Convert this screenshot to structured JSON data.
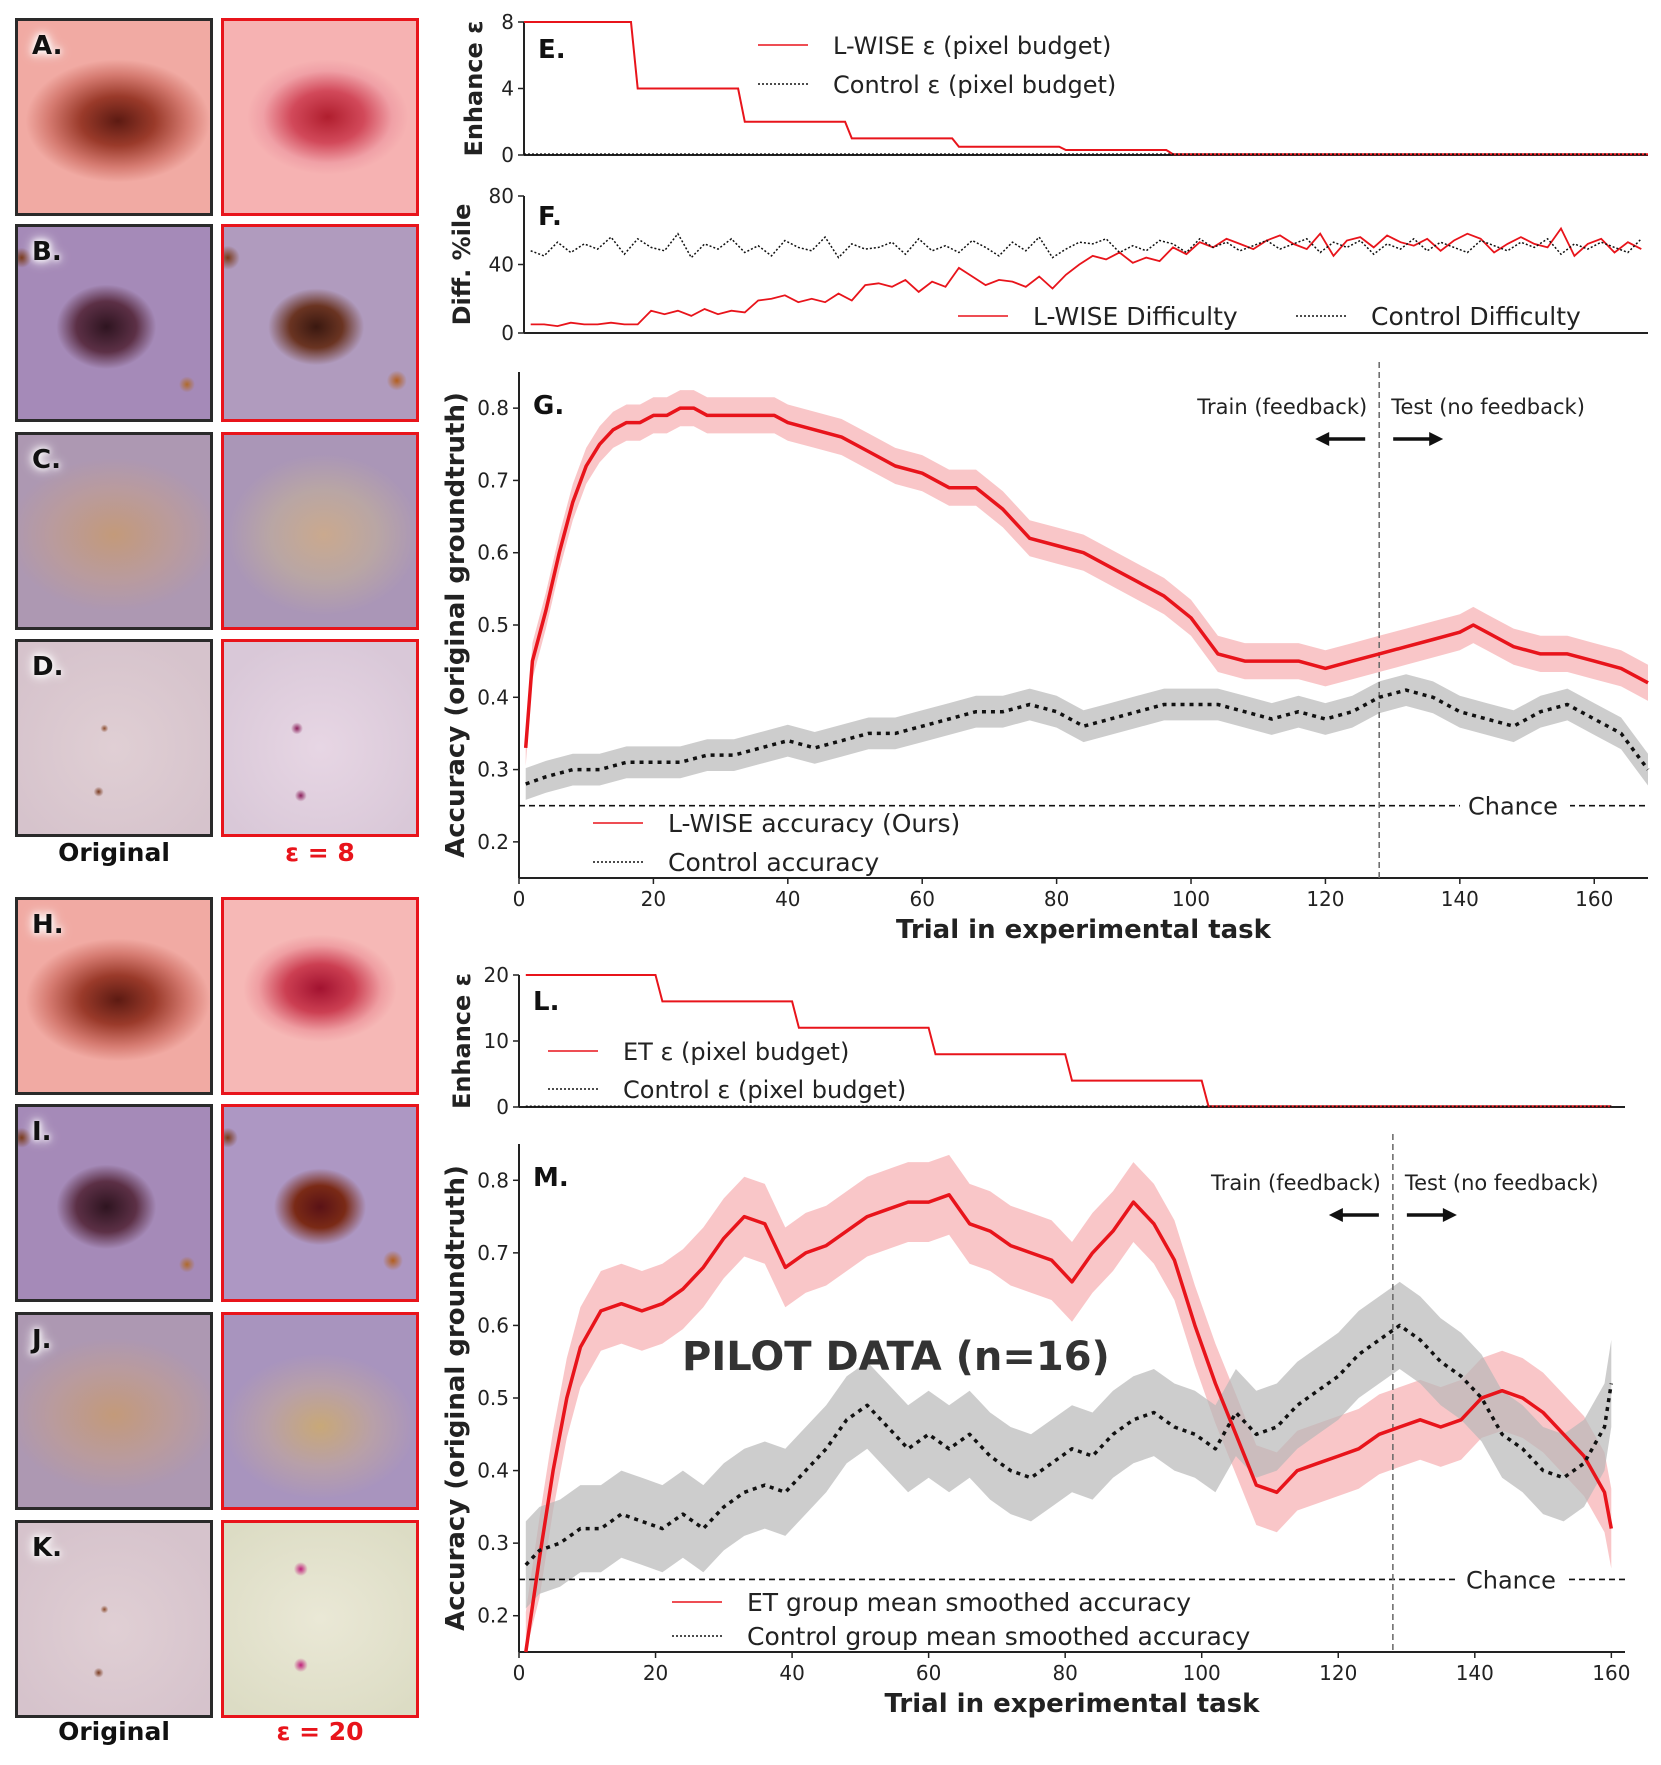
{
  "image_panels": {
    "tiles": [
      {
        "label": "A.",
        "type": "original",
        "look": "pink skin, dark brown lesion"
      },
      {
        "label": "",
        "type": "enhanced",
        "look": "pink skin, dark red lesion"
      },
      {
        "label": "B.",
        "type": "original",
        "look": "purple skin, dark lesion"
      },
      {
        "label": "",
        "type": "enhanced",
        "look": "purple skin, brown lesion"
      },
      {
        "label": "C.",
        "type": "original",
        "look": "mauve skin, faint tan patch"
      },
      {
        "label": "",
        "type": "enhanced",
        "look": "mauve skin, speckled patch"
      },
      {
        "label": "D.",
        "type": "original",
        "look": "pale skin, small dots"
      },
      {
        "label": "",
        "type": "enhanced",
        "look": "pale skin, pink dots"
      },
      {
        "label": "H.",
        "type": "original",
        "look": "pink skin, dark brown lesion"
      },
      {
        "label": "",
        "type": "enhanced",
        "look": "pink skin, red lesion"
      },
      {
        "label": "I.",
        "type": "original",
        "look": "purple skin, dark lesion"
      },
      {
        "label": "",
        "type": "enhanced",
        "look": "purple skin, dark lesion"
      },
      {
        "label": "J.",
        "type": "original",
        "look": "mauve skin, faint tan patch"
      },
      {
        "label": "",
        "type": "enhanced",
        "look": "mauve skin, lace pattern"
      },
      {
        "label": "K.",
        "type": "original",
        "look": "pale skin, small dots"
      },
      {
        "label": "",
        "type": "enhanced",
        "look": "green-white, magenta dots"
      }
    ],
    "captions_top": {
      "original": "Original",
      "enhanced": "ε = 8"
    },
    "captions_bottom": {
      "original": "Original",
      "enhanced": "ε = 20"
    }
  },
  "colors": {
    "red": "#e8141b",
    "red_band": "#f7b3b6",
    "black": "#111111",
    "gray_band": "#b8b8b8",
    "tile_border": "#2a2a2a"
  },
  "chart_data": [
    {
      "id": "E",
      "type": "line",
      "panel_label": "E.",
      "ylabel": "Enhance ε",
      "xlim": [
        0,
        168
      ],
      "ylim": [
        0,
        8
      ],
      "yticks": [
        0,
        4,
        8
      ],
      "series": [
        {
          "name": "L-WISE ε (pixel budget)",
          "style": "solid-red",
          "x": [
            0,
            16,
            17,
            32,
            33,
            48,
            49,
            64,
            65,
            80,
            81,
            96,
            97,
            168
          ],
          "y": [
            8,
            8,
            4,
            4,
            2,
            2,
            1,
            1,
            0.5,
            0.5,
            0.3,
            0.3,
            0.05,
            0.05
          ]
        },
        {
          "name": "Control ε (pixel budget)",
          "style": "dotted-black",
          "x": [
            0,
            168
          ],
          "y": [
            0.05,
            0.05
          ]
        }
      ]
    },
    {
      "id": "F",
      "type": "line",
      "panel_label": "F.",
      "ylabel": "Diff. %ile",
      "xlim": [
        0,
        168
      ],
      "ylim": [
        0,
        80
      ],
      "yticks": [
        0,
        40,
        80
      ],
      "series": [
        {
          "name": "L-WISE Difficulty",
          "style": "solid-red",
          "x": [
            1,
            3,
            5,
            7,
            9,
            11,
            13,
            15,
            17,
            19,
            21,
            23,
            25,
            27,
            29,
            31,
            33,
            35,
            37,
            39,
            41,
            43,
            45,
            47,
            49,
            51,
            53,
            55,
            57,
            59,
            61,
            63,
            65,
            67,
            69,
            71,
            73,
            75,
            77,
            79,
            81,
            83,
            85,
            87,
            89,
            91,
            93,
            95,
            97,
            99,
            101,
            103,
            105,
            107,
            109,
            111,
            113,
            115,
            117,
            119,
            121,
            123,
            125,
            127,
            129,
            131,
            133,
            135,
            137,
            139,
            141,
            143,
            145,
            147,
            149,
            151,
            153,
            155,
            157,
            159,
            161,
            163,
            165,
            167
          ],
          "y": [
            5,
            5,
            4,
            6,
            5,
            5,
            6,
            5,
            5,
            13,
            11,
            13,
            10,
            14,
            11,
            13,
            12,
            19,
            20,
            22,
            18,
            20,
            18,
            23,
            19,
            28,
            29,
            27,
            31,
            24,
            30,
            27,
            38,
            33,
            28,
            31,
            30,
            27,
            33,
            26,
            34,
            40,
            45,
            43,
            47,
            41,
            44,
            42,
            50,
            46,
            53,
            50,
            55,
            52,
            49,
            54,
            57,
            52,
            49,
            58,
            45,
            54,
            56,
            50,
            57,
            53,
            51,
            55,
            48,
            54,
            58,
            55,
            47,
            52,
            56,
            52,
            50,
            61,
            45,
            52,
            55,
            47,
            53,
            49
          ]
        },
        {
          "name": "Control Difficulty",
          "style": "dotted-black",
          "x": [
            1,
            3,
            5,
            7,
            9,
            11,
            13,
            15,
            17,
            19,
            21,
            23,
            25,
            27,
            29,
            31,
            33,
            35,
            37,
            39,
            41,
            43,
            45,
            47,
            49,
            51,
            53,
            55,
            57,
            59,
            61,
            63,
            65,
            67,
            69,
            71,
            73,
            75,
            77,
            79,
            81,
            83,
            85,
            87,
            89,
            91,
            93,
            95,
            97,
            99,
            101,
            103,
            105,
            107,
            109,
            111,
            113,
            115,
            117,
            119,
            121,
            123,
            125,
            127,
            129,
            131,
            133,
            135,
            137,
            139,
            141,
            143,
            145,
            147,
            149,
            151,
            153,
            155,
            157,
            159,
            161,
            163,
            165,
            167
          ],
          "y": [
            48,
            45,
            53,
            47,
            52,
            49,
            56,
            46,
            55,
            50,
            48,
            58,
            44,
            52,
            49,
            55,
            47,
            51,
            45,
            54,
            50,
            48,
            56,
            44,
            52,
            49,
            50,
            53,
            46,
            55,
            48,
            51,
            47,
            54,
            50,
            45,
            53,
            48,
            56,
            44,
            49,
            53,
            52,
            55,
            47,
            51,
            48,
            54,
            52,
            47,
            55,
            50,
            53,
            48,
            51,
            54,
            49,
            52,
            55,
            47,
            53,
            50,
            54,
            46,
            52,
            49,
            55,
            48,
            53,
            50,
            47,
            54,
            51,
            48,
            53,
            50,
            55,
            46,
            52,
            49,
            53,
            50,
            47,
            55
          ]
        }
      ]
    },
    {
      "id": "G",
      "type": "line",
      "panel_label": "G.",
      "xlabel": "Trial in experimental task",
      "ylabel": "Accuracy (original groundtruth)",
      "xlim": [
        0,
        168
      ],
      "ylim": [
        0.15,
        0.85
      ],
      "xticks": [
        0,
        20,
        40,
        60,
        80,
        100,
        120,
        140,
        160
      ],
      "yticks": [
        0.2,
        0.3,
        0.4,
        0.5,
        0.6,
        0.7,
        0.8
      ],
      "chance": 0.25,
      "chance_label": "Chance",
      "split_x": 128,
      "train_label": "Train (feedback)",
      "test_label": "Test (no feedback)",
      "series": [
        {
          "name": "L-WISE accuracy (Ours)",
          "style": "solid-red-band",
          "x": [
            1,
            2,
            4,
            6,
            8,
            10,
            12,
            14,
            16,
            18,
            20,
            22,
            24,
            26,
            28,
            30,
            32,
            34,
            36,
            38,
            40,
            44,
            48,
            52,
            56,
            60,
            64,
            68,
            72,
            76,
            80,
            84,
            88,
            92,
            96,
            100,
            104,
            108,
            112,
            116,
            120,
            124,
            128,
            132,
            136,
            140,
            142,
            144,
            148,
            152,
            156,
            160,
            164,
            168
          ],
          "y": [
            0.33,
            0.45,
            0.52,
            0.6,
            0.67,
            0.72,
            0.75,
            0.77,
            0.78,
            0.78,
            0.79,
            0.79,
            0.8,
            0.8,
            0.79,
            0.79,
            0.79,
            0.79,
            0.79,
            0.79,
            0.78,
            0.77,
            0.76,
            0.74,
            0.72,
            0.71,
            0.69,
            0.69,
            0.66,
            0.62,
            0.61,
            0.6,
            0.58,
            0.56,
            0.54,
            0.51,
            0.46,
            0.45,
            0.45,
            0.45,
            0.44,
            0.45,
            0.46,
            0.47,
            0.48,
            0.49,
            0.5,
            0.49,
            0.47,
            0.46,
            0.46,
            0.45,
            0.44,
            0.42
          ],
          "band": 0.025
        },
        {
          "name": "Control accuracy",
          "style": "dotted-black-band",
          "x": [
            1,
            4,
            8,
            12,
            16,
            20,
            24,
            28,
            32,
            36,
            40,
            44,
            48,
            52,
            56,
            60,
            64,
            68,
            72,
            76,
            80,
            84,
            88,
            92,
            96,
            100,
            104,
            108,
            112,
            116,
            120,
            124,
            128,
            132,
            136,
            140,
            144,
            148,
            152,
            156,
            160,
            164,
            168
          ],
          "y": [
            0.28,
            0.29,
            0.3,
            0.3,
            0.31,
            0.31,
            0.31,
            0.32,
            0.32,
            0.33,
            0.34,
            0.33,
            0.34,
            0.35,
            0.35,
            0.36,
            0.37,
            0.38,
            0.38,
            0.39,
            0.38,
            0.36,
            0.37,
            0.38,
            0.39,
            0.39,
            0.39,
            0.38,
            0.37,
            0.38,
            0.37,
            0.38,
            0.4,
            0.41,
            0.4,
            0.38,
            0.37,
            0.36,
            0.38,
            0.39,
            0.37,
            0.35,
            0.3
          ],
          "band": 0.022
        }
      ]
    },
    {
      "id": "L",
      "type": "line",
      "panel_label": "L.",
      "ylabel": "Enhance ε",
      "xlim": [
        0,
        162
      ],
      "ylim": [
        0,
        20
      ],
      "yticks": [
        0,
        10,
        20
      ],
      "series": [
        {
          "name": "ET ε (pixel budget)",
          "style": "solid-red",
          "x": [
            1,
            20,
            21,
            40,
            41,
            60,
            61,
            80,
            81,
            100,
            101,
            160
          ],
          "y": [
            20,
            20,
            16,
            16,
            12,
            12,
            8,
            8,
            4,
            4,
            0.1,
            0.1
          ]
        },
        {
          "name": "Control ε (pixel budget)",
          "style": "dotted-black",
          "x": [
            1,
            160
          ],
          "y": [
            0.1,
            0.1
          ]
        }
      ]
    },
    {
      "id": "M",
      "type": "line",
      "panel_label": "M.",
      "xlabel": "Trial in experimental task",
      "ylabel": "Accuracy (original groundtruth)",
      "annotation": "PILOT DATA (n=16)",
      "xlim": [
        0,
        162
      ],
      "ylim": [
        0.15,
        0.85
      ],
      "xticks": [
        0,
        20,
        40,
        60,
        80,
        100,
        120,
        140,
        160
      ],
      "yticks": [
        0.2,
        0.3,
        0.4,
        0.5,
        0.6,
        0.7,
        0.8
      ],
      "chance": 0.25,
      "chance_label": "Chance",
      "split_x": 128,
      "train_label": "Train (feedback)",
      "test_label": "Test (no feedback)",
      "series": [
        {
          "name": "ET group mean smoothed accuracy",
          "style": "solid-red-band",
          "x": [
            1,
            3,
            5,
            7,
            9,
            12,
            15,
            18,
            21,
            24,
            27,
            30,
            33,
            36,
            39,
            42,
            45,
            48,
            51,
            54,
            57,
            60,
            63,
            66,
            69,
            72,
            75,
            78,
            81,
            84,
            87,
            90,
            93,
            96,
            99,
            102,
            105,
            108,
            111,
            114,
            117,
            120,
            123,
            126,
            129,
            132,
            135,
            138,
            141,
            144,
            147,
            150,
            153,
            156,
            159,
            160
          ],
          "y": [
            0.15,
            0.28,
            0.4,
            0.5,
            0.57,
            0.62,
            0.63,
            0.62,
            0.63,
            0.65,
            0.68,
            0.72,
            0.75,
            0.74,
            0.68,
            0.7,
            0.71,
            0.73,
            0.75,
            0.76,
            0.77,
            0.77,
            0.78,
            0.74,
            0.73,
            0.71,
            0.7,
            0.69,
            0.66,
            0.7,
            0.73,
            0.77,
            0.74,
            0.69,
            0.6,
            0.52,
            0.45,
            0.38,
            0.37,
            0.4,
            0.41,
            0.42,
            0.43,
            0.45,
            0.46,
            0.47,
            0.46,
            0.47,
            0.5,
            0.51,
            0.5,
            0.48,
            0.45,
            0.42,
            0.37,
            0.32
          ],
          "band": 0.055
        },
        {
          "name": "Control group mean smoothed accuracy",
          "style": "dotted-black-band",
          "x": [
            1,
            3,
            6,
            9,
            12,
            15,
            18,
            21,
            24,
            27,
            30,
            33,
            36,
            39,
            42,
            45,
            48,
            51,
            54,
            57,
            60,
            63,
            66,
            69,
            72,
            75,
            78,
            81,
            84,
            87,
            90,
            93,
            96,
            99,
            102,
            105,
            108,
            111,
            114,
            117,
            120,
            123,
            126,
            129,
            132,
            135,
            138,
            141,
            144,
            147,
            150,
            153,
            156,
            159,
            160
          ],
          "y": [
            0.27,
            0.29,
            0.3,
            0.32,
            0.32,
            0.34,
            0.33,
            0.32,
            0.34,
            0.32,
            0.35,
            0.37,
            0.38,
            0.37,
            0.4,
            0.43,
            0.47,
            0.49,
            0.46,
            0.43,
            0.45,
            0.43,
            0.45,
            0.42,
            0.4,
            0.39,
            0.41,
            0.43,
            0.42,
            0.45,
            0.47,
            0.48,
            0.46,
            0.45,
            0.43,
            0.48,
            0.45,
            0.46,
            0.49,
            0.51,
            0.53,
            0.56,
            0.58,
            0.6,
            0.58,
            0.55,
            0.53,
            0.5,
            0.45,
            0.43,
            0.4,
            0.39,
            0.41,
            0.46,
            0.52
          ],
          "band": 0.06
        }
      ]
    }
  ]
}
